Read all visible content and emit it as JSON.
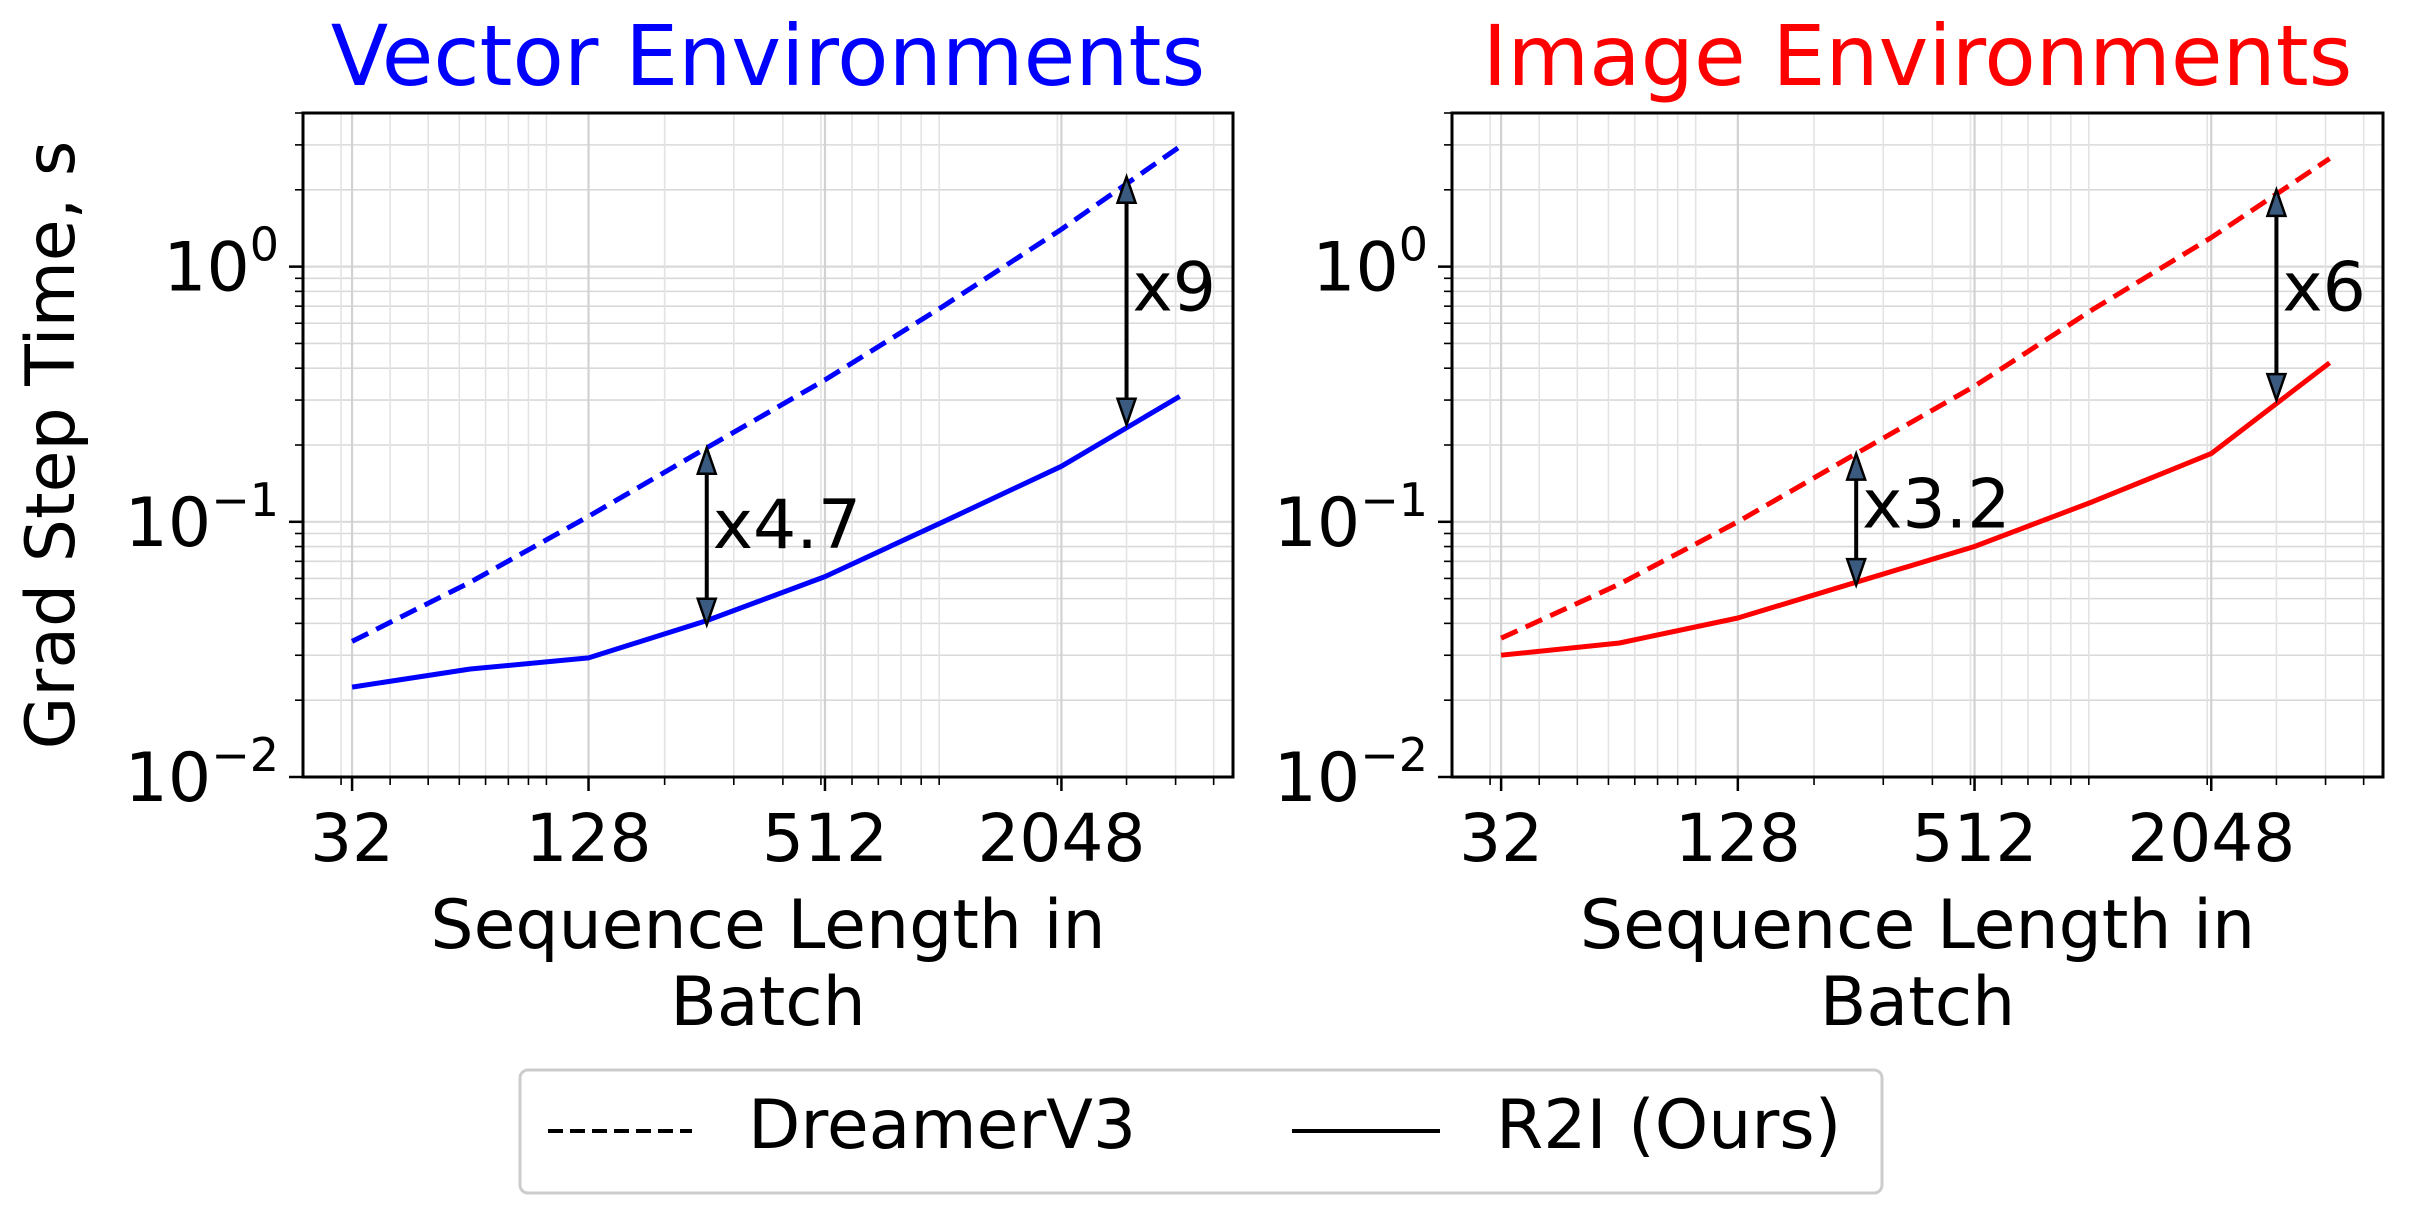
{
  "chart_data": [
    {
      "type": "line",
      "title": "Vector Environments",
      "title_color": "#0000ff",
      "xlabel": [
        "Sequence Length in",
        "Batch"
      ],
      "ylabel": "Grad Step Time, s",
      "x_scale": "log2",
      "y_scale": "log10",
      "xlim": [
        24,
        5600
      ],
      "ylim": [
        0.01,
        4.0
      ],
      "xticks": [
        32,
        128,
        512,
        2048
      ],
      "xtick_labels": [
        "32",
        "128",
        "512",
        "2048"
      ],
      "yticks": [
        0.01,
        0.1,
        1
      ],
      "ytick_labels": [
        {
          "base": "10",
          "exp": "−2"
        },
        {
          "base": "10",
          "exp": "−1"
        },
        {
          "base": "10",
          "exp": "0"
        }
      ],
      "grid": true,
      "series": [
        {
          "name": "DreamerV3",
          "style": "dashed",
          "color": "#0000ff",
          "x": [
            32,
            64,
            128,
            256,
            512,
            1024,
            2048,
            4096
          ],
          "y": [
            0.034,
            0.058,
            0.105,
            0.195,
            0.36,
            0.7,
            1.4,
            2.95
          ]
        },
        {
          "name": "R2I (Ours)",
          "style": "solid",
          "color": "#0000ff",
          "x": [
            32,
            64,
            128,
            256,
            512,
            1024,
            2048,
            4096
          ],
          "y": [
            0.0225,
            0.0265,
            0.0293,
            0.041,
            0.061,
            0.1,
            0.165,
            0.31
          ]
        }
      ],
      "annotations": [
        {
          "text": "x4.7",
          "x": 256,
          "y_top": 0.195,
          "y_bottom": 0.0395,
          "label_y": 0.1
        },
        {
          "text": "x9",
          "x": 3000,
          "y_top": 2.25,
          "y_bottom": 0.24,
          "label_y": 0.85
        }
      ]
    },
    {
      "type": "line",
      "title": "Image Environments",
      "title_color": "#ff0000",
      "xlabel": [
        "Sequence Length in",
        "Batch"
      ],
      "ylabel": "",
      "x_scale": "log2",
      "y_scale": "log10",
      "xlim": [
        24,
        5600
      ],
      "ylim": [
        0.01,
        4.0
      ],
      "xticks": [
        32,
        128,
        512,
        2048
      ],
      "xtick_labels": [
        "32",
        "128",
        "512",
        "2048"
      ],
      "yticks": [
        0.01,
        0.1,
        1
      ],
      "ytick_labels": [
        {
          "base": "10",
          "exp": "−2"
        },
        {
          "base": "10",
          "exp": "−1"
        },
        {
          "base": "10",
          "exp": "0"
        }
      ],
      "grid": true,
      "series": [
        {
          "name": "DreamerV3",
          "style": "dashed",
          "color": "#ff0000",
          "x": [
            32,
            64,
            128,
            256,
            512,
            1024,
            2048,
            4096
          ],
          "y": [
            0.035,
            0.057,
            0.1,
            0.185,
            0.34,
            0.68,
            1.3,
            2.65
          ]
        },
        {
          "name": "R2I (Ours)",
          "style": "solid",
          "color": "#ff0000",
          "x": [
            32,
            64,
            128,
            256,
            512,
            1024,
            2048,
            4096
          ],
          "y": [
            0.03,
            0.0335,
            0.042,
            0.058,
            0.08,
            0.12,
            0.185,
            0.42
          ]
        }
      ],
      "annotations": [
        {
          "text": "x3.2",
          "x": 256,
          "y_top": 0.185,
          "y_bottom": 0.0565,
          "label_y": 0.12
        },
        {
          "text": "x6",
          "x": 3000,
          "y_top": 2.0,
          "y_bottom": 0.3,
          "label_y": 0.85
        }
      ]
    }
  ],
  "legend": {
    "placement": "bottom-center",
    "entries": [
      {
        "label": "DreamerV3",
        "style": "dashed",
        "color": "#000000"
      },
      {
        "label": "R2I (Ours)",
        "style": "solid",
        "color": "#000000"
      }
    ]
  }
}
